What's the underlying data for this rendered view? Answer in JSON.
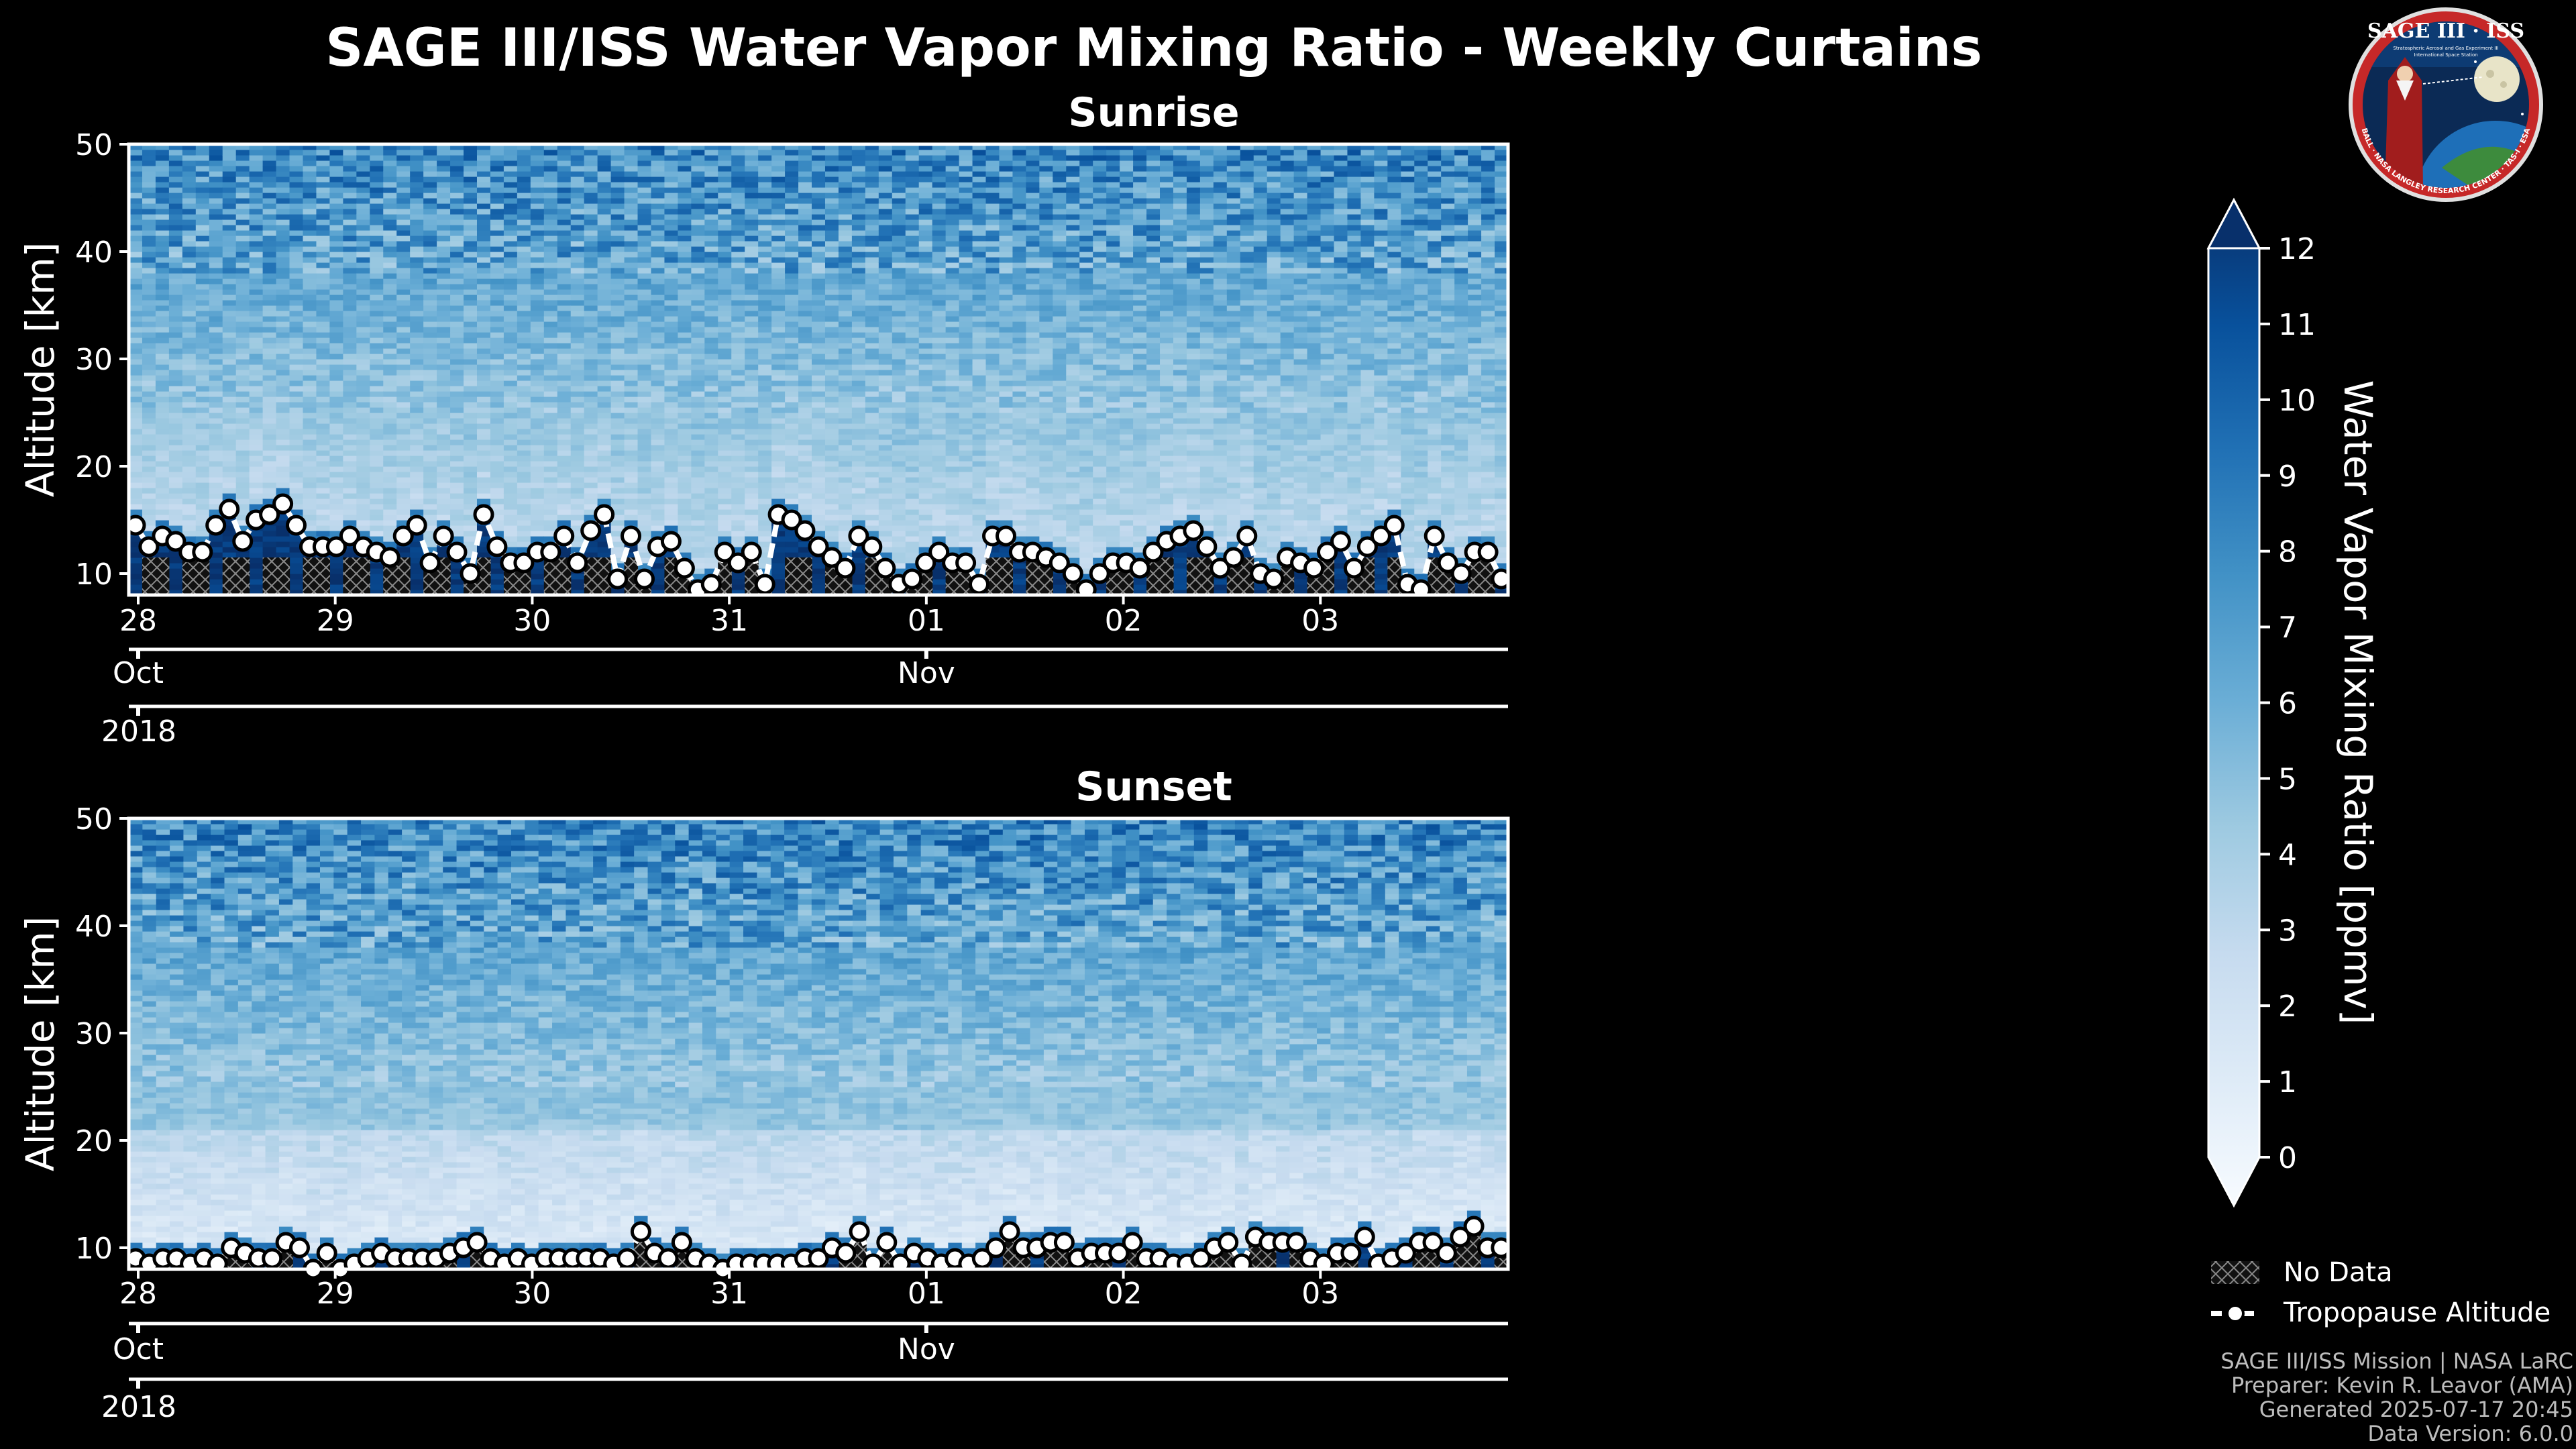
{
  "chart_data": [
    {
      "type": "heatmap",
      "panel": "Sunrise",
      "title": "Sunrise",
      "ylabel": "Altitude [km]",
      "ylim": [
        8,
        50
      ],
      "yticks": [
        10,
        20,
        30,
        40,
        50
      ],
      "day_ticks": [
        "28",
        "29",
        "30",
        "31",
        "01",
        "02",
        "03"
      ],
      "month_ticks": [
        {
          "label": "Oct",
          "day": 0
        },
        {
          "label": "Nov",
          "day": 4
        }
      ],
      "year_label": "2018",
      "tropopause_km": [
        14.5,
        12.5,
        13.5,
        13,
        12,
        12,
        14.5,
        16,
        13,
        15,
        15.5,
        16.5,
        14.5,
        12.5,
        12.5,
        12.5,
        13.5,
        12.5,
        12,
        11.5,
        13.5,
        14.5,
        11,
        13.5,
        12,
        10,
        15.5,
        12.5,
        11,
        11,
        12,
        12,
        13.5,
        11,
        14,
        15.5,
        9.5,
        13.5,
        9.5,
        12.5,
        13,
        10.5,
        8.5,
        9,
        12,
        11,
        12,
        9,
        15.5,
        15,
        14,
        12.5,
        11.5,
        10.5,
        13.5,
        12.5,
        10.5,
        9,
        9.5,
        11,
        12,
        11,
        11,
        9,
        13.5,
        13.5,
        12,
        12,
        11.5,
        11,
        10,
        8.5,
        10,
        11,
        11,
        10.5,
        12,
        13,
        13.5,
        14,
        12.5,
        10.5,
        11.5,
        13.5,
        10,
        9.5,
        11.5,
        11,
        10.5,
        12,
        13,
        10.5,
        12.5,
        13.5,
        14.5,
        9,
        8.5,
        13.5,
        11,
        10,
        12,
        12,
        9.5
      ]
    },
    {
      "type": "heatmap",
      "panel": "Sunset",
      "title": "Sunset",
      "ylabel": "Altitude [km]",
      "ylim": [
        8,
        50
      ],
      "yticks": [
        10,
        20,
        30,
        40,
        50
      ],
      "day_ticks": [
        "28",
        "29",
        "30",
        "31",
        "01",
        "02",
        "03"
      ],
      "month_ticks": [
        {
          "label": "Oct",
          "day": 0
        },
        {
          "label": "Nov",
          "day": 4
        }
      ],
      "year_label": "2018",
      "tropopause_km": [
        9,
        8.5,
        9,
        9,
        8.5,
        9,
        8.5,
        10,
        9.5,
        9,
        9,
        10.5,
        10,
        8,
        9.5,
        8,
        8.5,
        9,
        9.5,
        9,
        9,
        9,
        9,
        9.5,
        10,
        10.5,
        9,
        8.5,
        9,
        8.5,
        9,
        9,
        9,
        9,
        9,
        8.5,
        9,
        11.5,
        9.5,
        9,
        10.5,
        9,
        8.5,
        8,
        8.5,
        8.5,
        8.5,
        8.5,
        8.5,
        9,
        9,
        10,
        9.5,
        11.5,
        8.5,
        10.5,
        8.5,
        9.5,
        9,
        8.5,
        9,
        8.5,
        9,
        10,
        11.5,
        10,
        10,
        10.5,
        10.5,
        9,
        9.5,
        9.5,
        9.5,
        10.5,
        9,
        9,
        8.5,
        8.5,
        9,
        10,
        10.5,
        8.5,
        11,
        10.5,
        10.5,
        10.5,
        9,
        8.5,
        9.5,
        9.5,
        11,
        8.5,
        9,
        9.5,
        10.5,
        10.5,
        9.5,
        11,
        12,
        10,
        10
      ]
    }
  ],
  "figure": {
    "title": "SAGE III/ISS Water Vapor Mixing Ratio - Weekly Curtains"
  },
  "colorbar": {
    "label": "Water Vapor Mixing Ratio [ppmv]",
    "min": 0,
    "max": 12,
    "ticks": [
      "0",
      "1",
      "2",
      "3",
      "4",
      "5",
      "6",
      "7",
      "8",
      "9",
      "10",
      "11",
      "12"
    ],
    "colors": [
      "#f7fbff",
      "#deebf7",
      "#c6dbef",
      "#9ecae1",
      "#6baed6",
      "#4292c6",
      "#2171b5",
      "#08519c",
      "#08306b"
    ]
  },
  "legend": {
    "no_data": "No Data",
    "tropopause": "Tropopause Altitude"
  },
  "logo": {
    "title": "SAGE III · ISS",
    "line1": "Stratospheric Aerosol and Gas Experiment III",
    "line2": "International Space Station",
    "ring": "BALL · NASA LANGLEY RESEARCH CENTER · TAS-I · ESA"
  },
  "footer": {
    "line1": "SAGE III/ISS Mission | NASA LaRC",
    "line2": "Preparer: Kevin R. Leavor (AMA)",
    "line3": "Generated 2025-07-17 20:45",
    "line4": "Data Version: 6.0.0"
  },
  "colors": {
    "background": "#000000",
    "axis": "#ffffff",
    "no_data_fill": "#1a1a1a"
  }
}
